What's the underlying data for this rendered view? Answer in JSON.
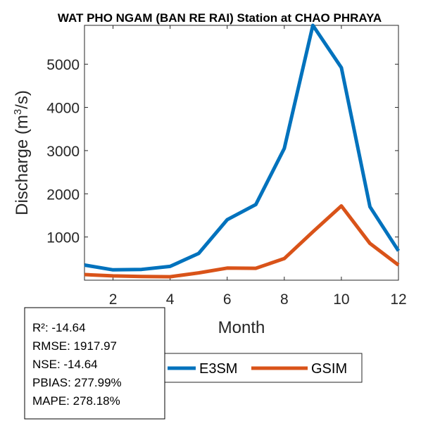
{
  "chart_data": {
    "type": "line",
    "title": "WAT PHO NGAM (BAN RE RAI)  Station at  CHAO PHRAYA",
    "xlabel": "Month",
    "ylabel": "Discharge (m",
    "ylabel_sup": "3",
    "ylabel_tail": "/s)",
    "x": [
      1,
      2,
      3,
      4,
      5,
      6,
      7,
      8,
      9,
      10,
      11,
      12
    ],
    "xlim": [
      1,
      12
    ],
    "ylim": [
      0,
      5900
    ],
    "xticks": [
      2,
      4,
      6,
      8,
      10,
      12
    ],
    "yticks": [
      1000,
      2000,
      3000,
      4000,
      5000
    ],
    "series": [
      {
        "name": "E3SM",
        "color": "#0072BD",
        "values": [
          350,
          240,
          250,
          320,
          620,
          1400,
          1750,
          3050,
          5900,
          4920,
          1700,
          680
        ]
      },
      {
        "name": "GSIM",
        "color": "#D95319",
        "values": [
          130,
          100,
          85,
          80,
          170,
          280,
          275,
          500,
          1120,
          1720,
          850,
          350
        ]
      }
    ],
    "stats": [
      "R²: -14.64",
      "RMSE: 1917.97",
      "NSE: -14.64",
      "PBIAS: 277.99%",
      "MAPE: 278.18%"
    ]
  }
}
